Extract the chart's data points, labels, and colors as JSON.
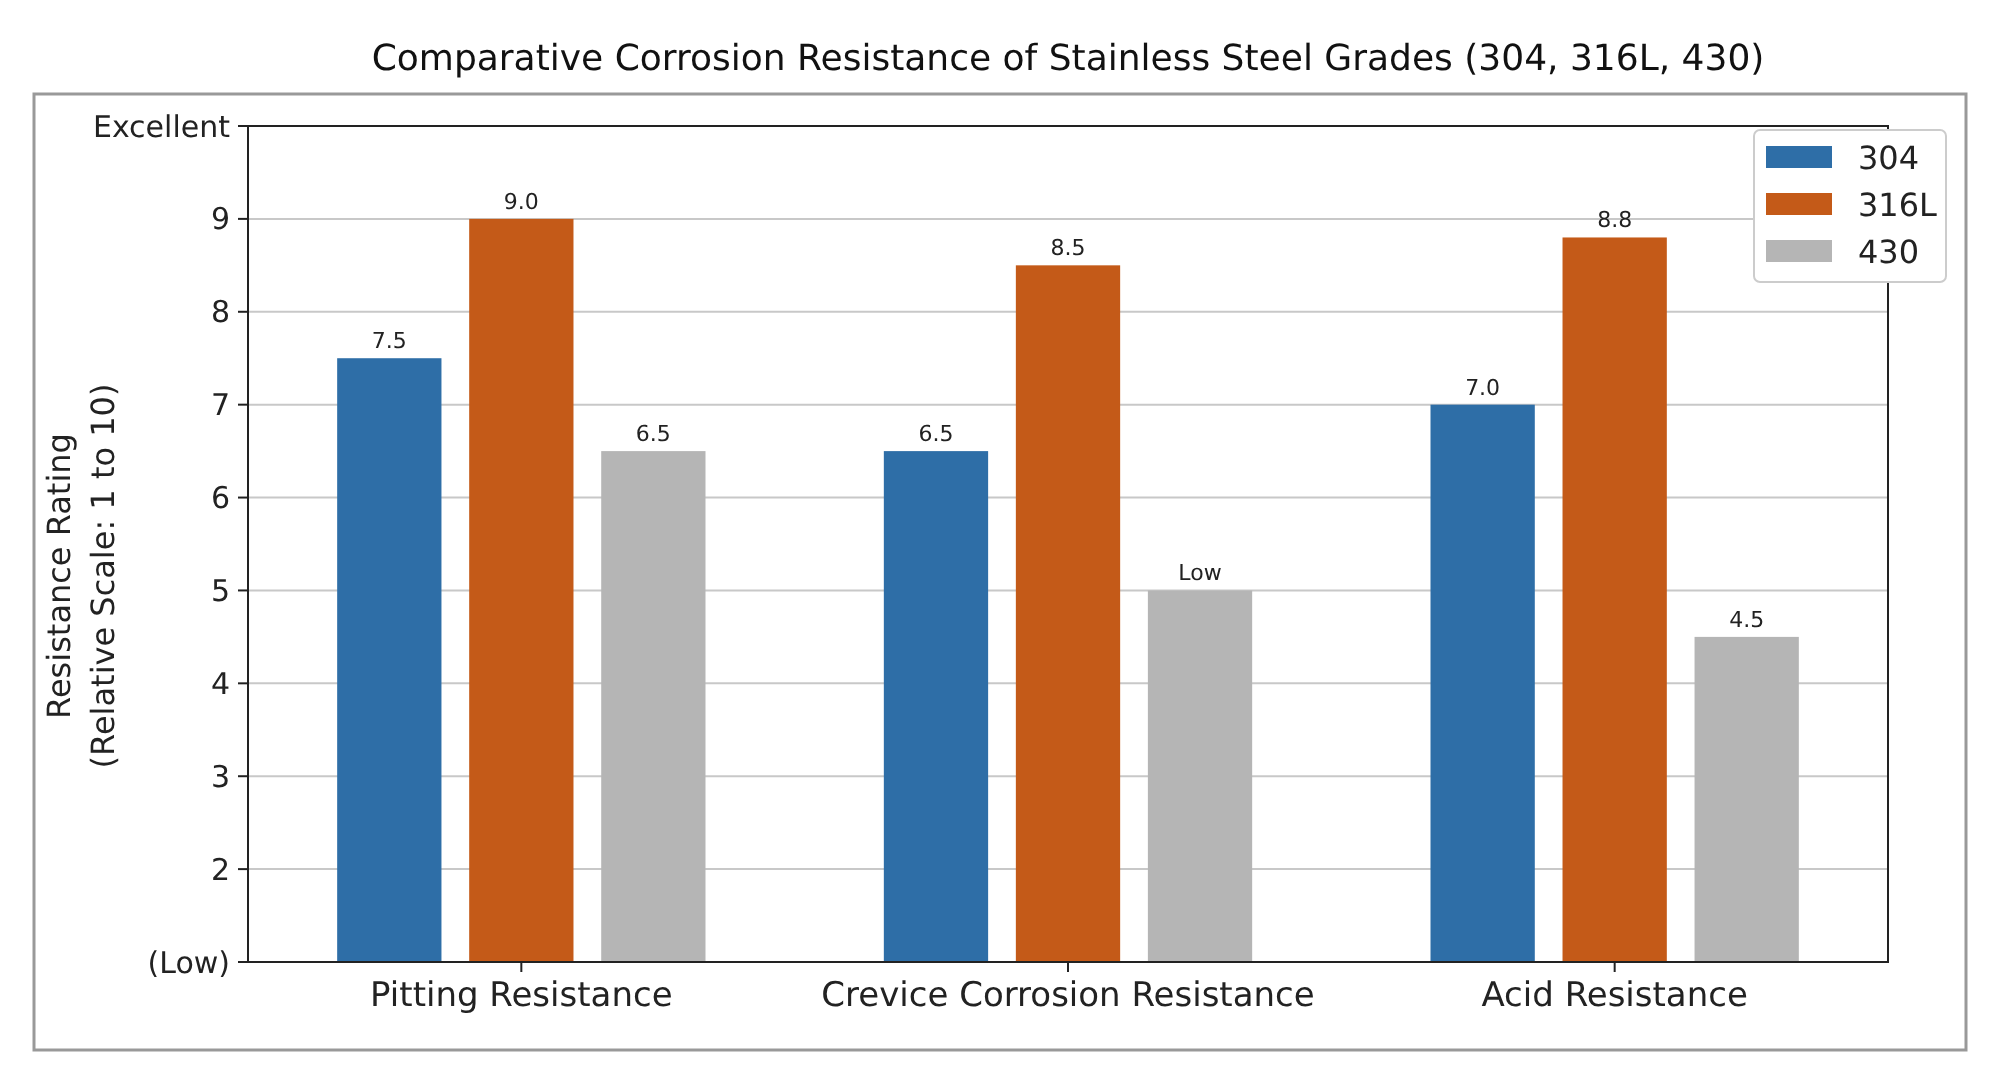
{
  "chart_data": {
    "type": "bar",
    "title": "Comparative Corrosion Resistance of Stainless Steel Grades (304, 316L, 430)",
    "ylabel": "Resistance Rating\n(Relative Scale: 1 to 10)",
    "categories": [
      "Pitting Resistance",
      "Crevice Corrosion Resistance",
      "Acid Resistance"
    ],
    "series": [
      {
        "name": "304",
        "color": "#2e6ea7",
        "values": [
          7.5,
          6.5,
          7.0
        ],
        "value_labels": [
          "7.5",
          "6.5",
          "7.0"
        ]
      },
      {
        "name": "316L",
        "color": "#c45a18",
        "values": [
          9.0,
          8.5,
          8.8
        ],
        "value_labels": [
          "9.0",
          "8.5",
          "8.8"
        ]
      },
      {
        "name": "430",
        "color": "#b5b5b5",
        "values": [
          6.5,
          5.0,
          4.5
        ],
        "value_labels": [
          "6.5",
          "Low",
          "4.5"
        ]
      }
    ],
    "ylim": [
      1,
      10
    ],
    "yticks": [
      {
        "value": 1,
        "label": "(Low)"
      },
      2,
      3,
      4,
      5,
      6,
      7,
      8,
      9,
      {
        "value": 10,
        "label": "Excellent"
      }
    ],
    "grid": "y",
    "legend": "top right"
  }
}
